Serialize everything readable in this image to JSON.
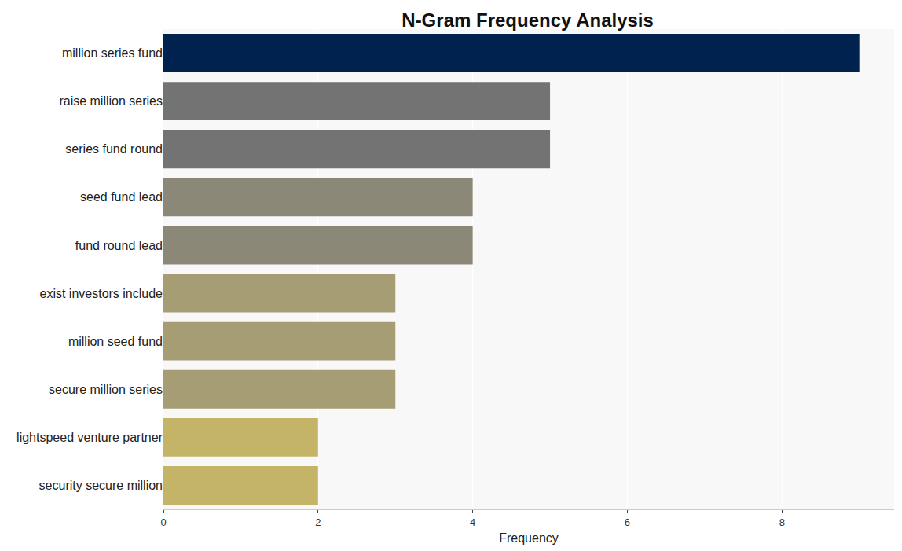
{
  "chart_data": {
    "type": "bar",
    "orientation": "horizontal",
    "title": "N-Gram Frequency Analysis",
    "x_label": "Frequency",
    "categories": [
      "million series fund",
      "raise million series",
      "series fund round",
      "seed fund lead",
      "fund round lead",
      "exist investors include",
      "million seed fund",
      "secure million series",
      "lightspeed venture partner",
      "security secure million"
    ],
    "values": [
      9,
      5,
      5,
      4,
      4,
      3,
      3,
      3,
      2,
      2
    ],
    "colors": [
      "#00224e",
      "#737373",
      "#737373",
      "#8b8878",
      "#8b8878",
      "#a69d75",
      "#a69d75",
      "#a69d75",
      "#c4b468",
      "#c4b468"
    ],
    "xlim": [
      0,
      9.45
    ],
    "xticks": [
      0,
      2,
      4,
      6,
      8
    ],
    "grid": true
  }
}
